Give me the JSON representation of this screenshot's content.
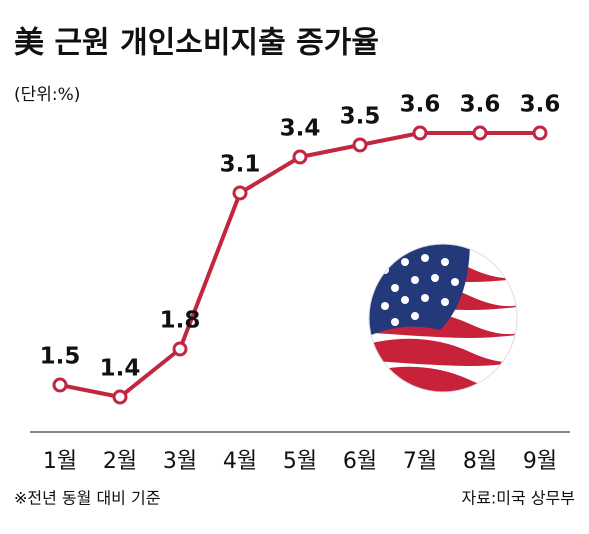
{
  "chart_data": {
    "type": "line",
    "title": "美 근원 개인소비지출 증가율",
    "subtitle": "(단위:%)",
    "categories": [
      "1월",
      "2월",
      "3월",
      "4월",
      "5월",
      "6월",
      "7월",
      "8월",
      "9월"
    ],
    "series": [
      {
        "name": "근원 개인소비지출 증가율",
        "color": "#c3263f",
        "values": [
          1.5,
          1.4,
          1.8,
          3.1,
          3.4,
          3.5,
          3.6,
          3.6,
          3.6
        ]
      }
    ],
    "note": "※전년 동월 대비 기준",
    "source": "자료:미국 상무부"
  }
}
